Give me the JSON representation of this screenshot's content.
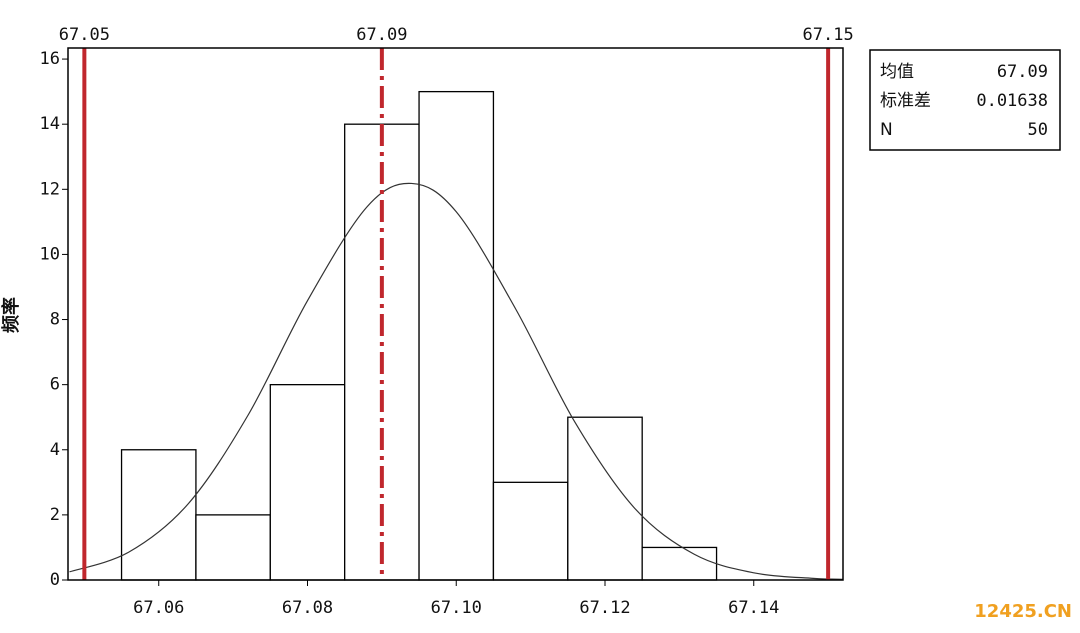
{
  "chart_data": {
    "type": "histogram",
    "ylabel": "频率",
    "bins": [
      67.055,
      67.065,
      67.075,
      67.085,
      67.095,
      67.105,
      67.115,
      67.125,
      67.135
    ],
    "values": [
      4,
      2,
      6,
      14,
      15,
      3,
      5,
      1
    ],
    "color": "#ffffff",
    "xlim": [
      67.0478,
      67.152
    ],
    "ylim": [
      0,
      16.34
    ],
    "xticks": [
      67.06,
      67.08,
      {
        "value": 67.1,
        "label": "67.10"
      },
      67.12,
      67.14
    ],
    "yticks": [
      0,
      2,
      4,
      6,
      8,
      10,
      12,
      14,
      16
    ],
    "curve": {
      "color": "#333333",
      "x": [
        67.048,
        67.056,
        67.064,
        67.072,
        67.08,
        67.088,
        67.094,
        67.1,
        67.108,
        67.116,
        67.124,
        67.132,
        67.14,
        67.148,
        67.152
      ],
      "y": [
        0.25,
        0.86,
        2.35,
        5.06,
        8.58,
        11.46,
        12.18,
        11.31,
        8.32,
        4.83,
        2.2,
        0.79,
        0.22,
        0.05,
        0.02
      ]
    },
    "reference_lines": [
      {
        "value": 67.05,
        "style": "solid",
        "color": "#c0272d"
      },
      {
        "value": 67.09,
        "style": "dashdot",
        "color": "#c0272d"
      },
      {
        "value": 67.15,
        "style": "solid",
        "color": "#c0272d"
      }
    ],
    "stats": [
      {
        "label": "均值",
        "value": 67.09
      },
      {
        "label": "标准差",
        "value": 0.01638
      },
      {
        "label": "N",
        "value": 50
      }
    ],
    "watermark": "12425.CN"
  }
}
